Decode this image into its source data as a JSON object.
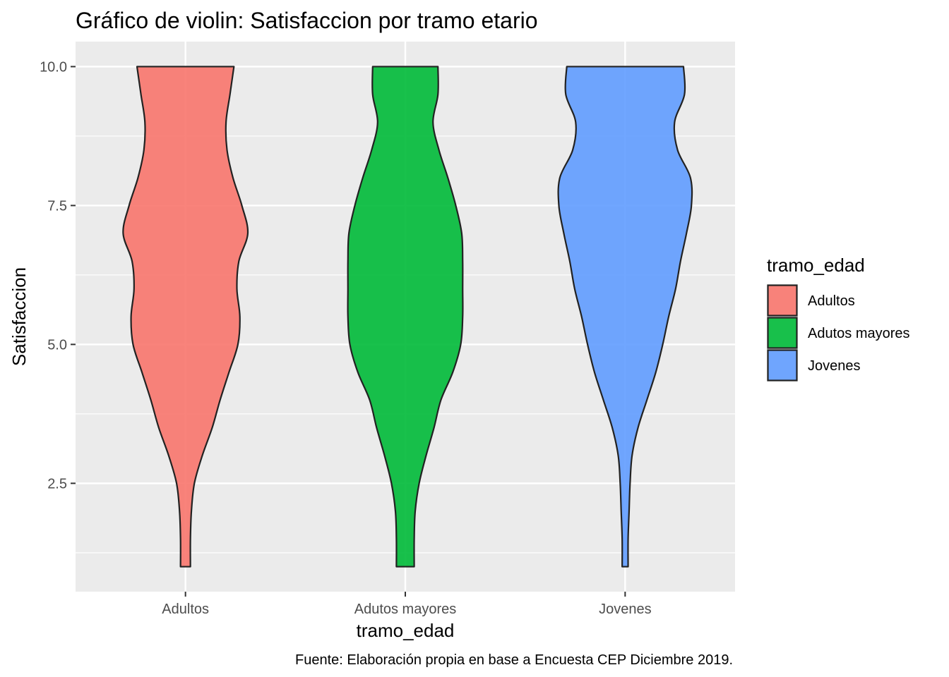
{
  "chart_data": {
    "type": "violin",
    "title": "Gráfico de violin: Satisfaccion por tramo etario",
    "xlabel": "tramo_edad",
    "ylabel": "Satisfaccion",
    "caption": "Fuente: Elaboración propia en base a Encuesta CEP Diciembre 2019.",
    "ylim": [
      0.55,
      10.45
    ],
    "y_ticks": [
      2.5,
      5.0,
      7.5,
      10.0
    ],
    "y_tick_labels": [
      "2.5",
      "5.0",
      "7.5",
      "10.0"
    ],
    "categories": [
      "Adultos",
      "Adutos mayores",
      "Jovenes"
    ],
    "legend": {
      "title": "tramo_edad",
      "position": "right",
      "entries": [
        "Adultos",
        "Adutos mayores",
        "Jovenes"
      ]
    },
    "colors": [
      "#F8766D",
      "#00BA38",
      "#619CFF"
    ],
    "series": [
      {
        "name": "Adultos",
        "color": "#F8766D",
        "range": [
          1,
          10
        ],
        "density_profile": [
          [
            1.0,
            0.05
          ],
          [
            1.5,
            0.05
          ],
          [
            2.0,
            0.06
          ],
          [
            2.5,
            0.09
          ],
          [
            3.0,
            0.17
          ],
          [
            3.5,
            0.27
          ],
          [
            4.0,
            0.35
          ],
          [
            4.5,
            0.44
          ],
          [
            5.0,
            0.53
          ],
          [
            5.5,
            0.55
          ],
          [
            6.0,
            0.52
          ],
          [
            6.5,
            0.54
          ],
          [
            7.0,
            0.63
          ],
          [
            7.5,
            0.57
          ],
          [
            8.0,
            0.48
          ],
          [
            8.5,
            0.42
          ],
          [
            9.0,
            0.41
          ],
          [
            9.5,
            0.45
          ],
          [
            10.0,
            0.49
          ]
        ]
      },
      {
        "name": "Adutos mayores",
        "color": "#00BA38",
        "range": [
          1,
          10
        ],
        "density_profile": [
          [
            1.0,
            0.09
          ],
          [
            1.5,
            0.09
          ],
          [
            2.0,
            0.1
          ],
          [
            2.5,
            0.14
          ],
          [
            3.0,
            0.21
          ],
          [
            3.5,
            0.29
          ],
          [
            4.0,
            0.36
          ],
          [
            4.5,
            0.48
          ],
          [
            5.0,
            0.56
          ],
          [
            5.5,
            0.58
          ],
          [
            6.0,
            0.58
          ],
          [
            6.5,
            0.58
          ],
          [
            7.0,
            0.57
          ],
          [
            7.5,
            0.51
          ],
          [
            8.0,
            0.43
          ],
          [
            8.5,
            0.34
          ],
          [
            9.0,
            0.28
          ],
          [
            9.5,
            0.33
          ],
          [
            10.0,
            0.33
          ]
        ]
      },
      {
        "name": "Jovenes",
        "color": "#619CFF",
        "range": [
          1,
          10
        ],
        "density_profile": [
          [
            1.0,
            0.03
          ],
          [
            1.5,
            0.03
          ],
          [
            2.0,
            0.04
          ],
          [
            2.5,
            0.05
          ],
          [
            3.0,
            0.07
          ],
          [
            3.5,
            0.13
          ],
          [
            4.0,
            0.22
          ],
          [
            4.5,
            0.31
          ],
          [
            5.0,
            0.38
          ],
          [
            5.5,
            0.44
          ],
          [
            6.0,
            0.51
          ],
          [
            6.5,
            0.56
          ],
          [
            7.0,
            0.62
          ],
          [
            7.5,
            0.67
          ],
          [
            8.0,
            0.66
          ],
          [
            8.5,
            0.53
          ],
          [
            9.0,
            0.5
          ],
          [
            9.5,
            0.6
          ],
          [
            10.0,
            0.59
          ]
        ]
      }
    ]
  }
}
